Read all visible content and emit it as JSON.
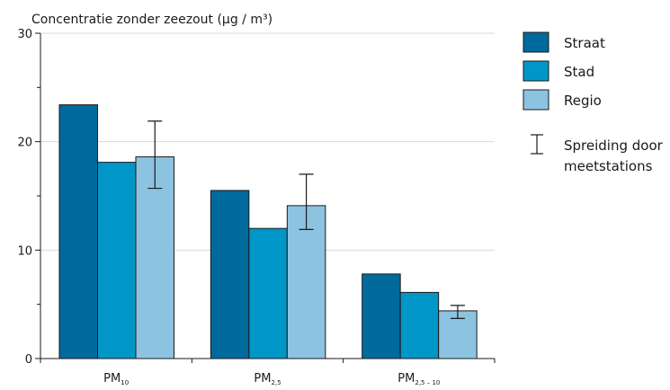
{
  "chart_data": {
    "type": "bar",
    "ylabel": "Concentratie zonder zeezout (µg / m³)",
    "ylim": [
      0,
      30
    ],
    "yticks": [
      0,
      10,
      20,
      30
    ],
    "grid": true,
    "legend_position": "right",
    "categories": [
      {
        "base": "PM",
        "sub": "10"
      },
      {
        "base": "PM",
        "sub": "2,5"
      },
      {
        "base": "PM",
        "sub": "2,5 – 10"
      }
    ],
    "series": [
      {
        "name": "Straat",
        "color": "#006a9c",
        "values": [
          23.4,
          15.5,
          7.8
        ],
        "error": null
      },
      {
        "name": "Stad",
        "color": "#0096c8",
        "values": [
          18.1,
          12.0,
          6.1
        ],
        "error": null
      },
      {
        "name": "Regio",
        "color": "#8cc3e1",
        "values": [
          18.6,
          14.1,
          4.4
        ],
        "error": [
          [
            15.7,
            21.9
          ],
          [
            11.9,
            17.0
          ],
          [
            3.7,
            4.9
          ]
        ]
      }
    ],
    "error_legend": [
      "Spreiding door",
      "meetstations"
    ]
  }
}
